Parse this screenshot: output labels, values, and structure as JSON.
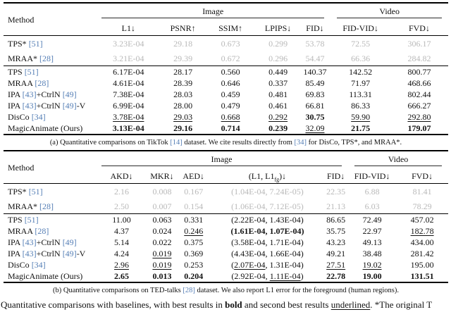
{
  "colors": {
    "citation_blue": "#567fb6",
    "muted_row_gray": "#b9b9b9",
    "text_black": "#111111"
  },
  "tables": [
    {
      "name": "tiktok",
      "method_header": "Method",
      "groups": [
        {
          "label": "Image",
          "span": 5
        },
        {
          "label": "Video",
          "span": 2
        }
      ],
      "columns": [
        [
          [
            "L1↓",
            ""
          ]
        ],
        [
          [
            "PSNR↑",
            ""
          ]
        ],
        [
          [
            "SSIM↑",
            ""
          ]
        ],
        [
          [
            "LPIPS↓",
            ""
          ]
        ],
        [
          [
            "FID↓",
            ""
          ]
        ],
        [
          [
            "FID-VID↓",
            ""
          ]
        ],
        [
          [
            "FVD↓",
            ""
          ]
        ]
      ],
      "rows": [
        {
          "gray": true,
          "method": [
            [
              "TPS* ",
              ""
            ],
            [
              "[51]",
              "c"
            ]
          ],
          "cells": [
            [
              [
                "3.23E-04",
                ""
              ]
            ],
            [
              [
                "29.18",
                ""
              ]
            ],
            [
              [
                "0.673",
                ""
              ]
            ],
            [
              [
                "0.299",
                ""
              ]
            ],
            [
              [
                "53.78",
                ""
              ]
            ],
            [
              [
                "72.55",
                ""
              ]
            ],
            [
              [
                "306.17",
                ""
              ]
            ]
          ]
        },
        {
          "gray": true,
          "rule_below": true,
          "method": [
            [
              "MRAA* ",
              ""
            ],
            [
              "[28]",
              "c"
            ]
          ],
          "cells": [
            [
              [
                "3.21E-04",
                ""
              ]
            ],
            [
              [
                "29.39",
                ""
              ]
            ],
            [
              [
                "0.672",
                ""
              ]
            ],
            [
              [
                "0.296",
                ""
              ]
            ],
            [
              [
                "54.47",
                ""
              ]
            ],
            [
              [
                "66.36",
                ""
              ]
            ],
            [
              [
                "284.82",
                ""
              ]
            ]
          ]
        },
        {
          "method": [
            [
              "TPS ",
              ""
            ],
            [
              "[51]",
              "c"
            ]
          ],
          "cells": [
            [
              [
                "6.17E-04",
                ""
              ]
            ],
            [
              [
                "28.17",
                ""
              ]
            ],
            [
              [
                "0.560",
                ""
              ]
            ],
            [
              [
                "0.449",
                ""
              ]
            ],
            [
              [
                "140.37",
                ""
              ]
            ],
            [
              [
                "142.52",
                ""
              ]
            ],
            [
              [
                "800.77",
                ""
              ]
            ]
          ]
        },
        {
          "method": [
            [
              "MRAA ",
              ""
            ],
            [
              "[28]",
              "c"
            ]
          ],
          "cells": [
            [
              [
                "4.61E-04",
                ""
              ]
            ],
            [
              [
                "28.39",
                ""
              ]
            ],
            [
              [
                "0.646",
                ""
              ]
            ],
            [
              [
                "0.337",
                ""
              ]
            ],
            [
              [
                "85.49",
                ""
              ]
            ],
            [
              [
                "71.97",
                ""
              ]
            ],
            [
              [
                "468.66",
                ""
              ]
            ]
          ]
        },
        {
          "method": [
            [
              "IPA ",
              ""
            ],
            [
              "[43]",
              "c"
            ],
            [
              "+CtrlN ",
              ""
            ],
            [
              "[49]",
              "c"
            ]
          ],
          "cells": [
            [
              [
                "7.38E-04",
                ""
              ]
            ],
            [
              [
                "28.03",
                ""
              ]
            ],
            [
              [
                "0.459",
                ""
              ]
            ],
            [
              [
                "0.481",
                ""
              ]
            ],
            [
              [
                "69.83",
                ""
              ]
            ],
            [
              [
                "113.31",
                ""
              ]
            ],
            [
              [
                "802.44",
                ""
              ]
            ]
          ]
        },
        {
          "method": [
            [
              "IPA ",
              ""
            ],
            [
              "[43]",
              "c"
            ],
            [
              "+CtrlN ",
              ""
            ],
            [
              "[49]",
              "c"
            ],
            [
              "-V",
              ""
            ]
          ],
          "cells": [
            [
              [
                "6.99E-04",
                ""
              ]
            ],
            [
              [
                "28.00",
                ""
              ]
            ],
            [
              [
                "0.479",
                ""
              ]
            ],
            [
              [
                "0.461",
                ""
              ]
            ],
            [
              [
                "66.81",
                ""
              ]
            ],
            [
              [
                "86.33",
                ""
              ]
            ],
            [
              [
                "666.27",
                ""
              ]
            ]
          ]
        },
        {
          "method": [
            [
              "DisCo ",
              ""
            ],
            [
              "[34]",
              "c"
            ]
          ],
          "cells": [
            [
              [
                "3.78E-04",
                "u"
              ]
            ],
            [
              [
                "29.03",
                "u"
              ]
            ],
            [
              [
                "0.668",
                "u"
              ]
            ],
            [
              [
                "0.292",
                "u"
              ]
            ],
            [
              [
                "30.75",
                "b"
              ]
            ],
            [
              [
                "59.90",
                "u"
              ]
            ],
            [
              [
                "292.80",
                "u"
              ]
            ]
          ]
        },
        {
          "method": [
            [
              "MagicAnimate (Ours)",
              ""
            ]
          ],
          "cells": [
            [
              [
                "3.13E-04",
                "b"
              ]
            ],
            [
              [
                "29.16",
                "b"
              ]
            ],
            [
              [
                "0.714",
                "b"
              ]
            ],
            [
              [
                "0.239",
                "b"
              ]
            ],
            [
              [
                "32.09",
                "u"
              ]
            ],
            [
              [
                "21.75",
                "b"
              ]
            ],
            [
              [
                "179.07",
                "b"
              ]
            ]
          ]
        }
      ],
      "caption": [
        [
          "(a) Quantitative comparisons on TikTok ",
          ""
        ],
        [
          "[14]",
          "c"
        ],
        [
          " dataset. We cite results directly from ",
          ""
        ],
        [
          "[34]",
          "c"
        ],
        [
          " for DisCo, TPS*, and MRAA*.",
          ""
        ]
      ]
    },
    {
      "name": "tedtalks",
      "method_header": "Method",
      "groups": [
        {
          "label": "Image",
          "span": 5
        },
        {
          "label": "Video",
          "span": 2
        }
      ],
      "columns": [
        [
          [
            "AKD↓",
            ""
          ]
        ],
        [
          [
            "MKR↓",
            ""
          ]
        ],
        [
          [
            "AED↓",
            ""
          ]
        ],
        [
          [
            "(L1, L1",
            ""
          ],
          [
            "fg",
            "sub"
          ],
          [
            ")↓",
            ""
          ]
        ],
        [
          [
            "FID↓",
            ""
          ]
        ],
        [
          [
            "FID-VID↓",
            ""
          ]
        ],
        [
          [
            "FVD↓",
            ""
          ]
        ]
      ],
      "rows": [
        {
          "gray": true,
          "method": [
            [
              "TPS* ",
              ""
            ],
            [
              "[51]",
              "c"
            ]
          ],
          "cells": [
            [
              [
                "2.16",
                ""
              ]
            ],
            [
              [
                "0.008",
                ""
              ]
            ],
            [
              [
                "0.167",
                ""
              ]
            ],
            [
              [
                "(1.04E-04, 7.24E-05)",
                ""
              ]
            ],
            [
              [
                "22.35",
                ""
              ]
            ],
            [
              [
                "6.88",
                ""
              ]
            ],
            [
              [
                "81.41",
                ""
              ]
            ]
          ]
        },
        {
          "gray": true,
          "rule_below": true,
          "method": [
            [
              "MRAA* ",
              ""
            ],
            [
              "[28]",
              "c"
            ]
          ],
          "cells": [
            [
              [
                "2.50",
                ""
              ]
            ],
            [
              [
                "0.007",
                ""
              ]
            ],
            [
              [
                "0.154",
                ""
              ]
            ],
            [
              [
                "(1.06E-04, 7.12E-05)",
                ""
              ]
            ],
            [
              [
                "21.13",
                ""
              ]
            ],
            [
              [
                "6.03",
                ""
              ]
            ],
            [
              [
                "78.29",
                ""
              ]
            ]
          ]
        },
        {
          "method": [
            [
              "TPS ",
              ""
            ],
            [
              "[51]",
              "c"
            ]
          ],
          "cells": [
            [
              [
                "11.00",
                ""
              ]
            ],
            [
              [
                "0.063",
                ""
              ]
            ],
            [
              [
                "0.331",
                ""
              ]
            ],
            [
              [
                "(2.22E-04, 1.43E-04)",
                ""
              ]
            ],
            [
              [
                "86.65",
                ""
              ]
            ],
            [
              [
                "72.49",
                ""
              ]
            ],
            [
              [
                "457.02",
                ""
              ]
            ]
          ]
        },
        {
          "method": [
            [
              "MRAA ",
              ""
            ],
            [
              "[28]",
              "c"
            ]
          ],
          "cells": [
            [
              [
                "4.37",
                ""
              ]
            ],
            [
              [
                "0.024",
                ""
              ]
            ],
            [
              [
                "0.246",
                "u"
              ]
            ],
            [
              [
                "(1.61E-04, 1.07E-04)",
                "b"
              ]
            ],
            [
              [
                "35.75",
                ""
              ]
            ],
            [
              [
                "22.97",
                ""
              ]
            ],
            [
              [
                "182.78",
                "u"
              ]
            ]
          ]
        },
        {
          "method": [
            [
              "IPA ",
              ""
            ],
            [
              "[43]",
              "c"
            ],
            [
              "+CtrlN ",
              ""
            ],
            [
              "[49]",
              "c"
            ]
          ],
          "cells": [
            [
              [
                "5.14",
                ""
              ]
            ],
            [
              [
                "0.022",
                ""
              ]
            ],
            [
              [
                "0.375",
                ""
              ]
            ],
            [
              [
                "(3.58E-04, 1.71E-04)",
                ""
              ]
            ],
            [
              [
                "43.23",
                ""
              ]
            ],
            [
              [
                "49.13",
                ""
              ]
            ],
            [
              [
                "434.00",
                ""
              ]
            ]
          ]
        },
        {
          "method": [
            [
              "IPA ",
              ""
            ],
            [
              "[43]",
              "c"
            ],
            [
              "+CtrlN ",
              ""
            ],
            [
              "[49]",
              "c"
            ],
            [
              "-V",
              ""
            ]
          ],
          "cells": [
            [
              [
                "4.24",
                ""
              ]
            ],
            [
              [
                "0.019",
                "u"
              ]
            ],
            [
              [
                "0.369",
                ""
              ]
            ],
            [
              [
                "(4.43E-04, 1.66E-04)",
                ""
              ]
            ],
            [
              [
                "49.21",
                ""
              ]
            ],
            [
              [
                "38.48",
                ""
              ]
            ],
            [
              [
                "281.42",
                ""
              ]
            ]
          ]
        },
        {
          "method": [
            [
              "DisCo ",
              ""
            ],
            [
              "[34]",
              "c"
            ]
          ],
          "cells": [
            [
              [
                "2.96",
                "u"
              ]
            ],
            [
              [
                "0.019",
                "u"
              ]
            ],
            [
              [
                "0.253",
                ""
              ]
            ],
            [
              [
                "(",
                ""
              ],
              [
                "2.07E-04",
                "u"
              ],
              [
                ", 1.31E-04)",
                ""
              ]
            ],
            [
              [
                "27.51",
                "u"
              ]
            ],
            [
              [
                "19.02",
                "u"
              ]
            ],
            [
              [
                "195.00",
                ""
              ]
            ]
          ]
        },
        {
          "method": [
            [
              "MagicAnimate (Ours)",
              ""
            ]
          ],
          "cells": [
            [
              [
                "2.65",
                "b"
              ]
            ],
            [
              [
                "0.013",
                "b"
              ]
            ],
            [
              [
                "0.204",
                "b"
              ]
            ],
            [
              [
                "(2.92E-04, ",
                ""
              ],
              [
                "1.11E-04",
                "u"
              ],
              [
                ")",
                ""
              ]
            ],
            [
              [
                "22.78",
                "b"
              ]
            ],
            [
              [
                "19.00",
                "b"
              ]
            ],
            [
              [
                "131.51",
                "b"
              ]
            ]
          ]
        }
      ],
      "caption": [
        [
          "(b) Quantitative comparisons on TED-talks ",
          ""
        ],
        [
          "[28]",
          "c"
        ],
        [
          " dataset. We also report L1 error for the foreground (human regions).",
          ""
        ]
      ]
    }
  ],
  "footer": [
    [
      "Quantitative comparisons with baselines, with best results in ",
      ""
    ],
    [
      "bold",
      "b"
    ],
    [
      " and second best results ",
      ""
    ],
    [
      "underlined",
      "u"
    ],
    [
      ". *The original T",
      ""
    ]
  ]
}
